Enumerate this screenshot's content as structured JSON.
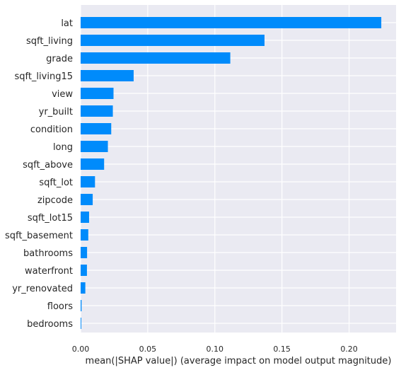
{
  "colors": {
    "bar": "#008bfb",
    "plot_background": "#eaeaf2",
    "grid": "#ffffff",
    "text": "#262626"
  },
  "chart_data": {
    "type": "bar",
    "orientation": "horizontal",
    "categories": [
      "lat",
      "sqft_living",
      "grade",
      "sqft_living15",
      "view",
      "yr_built",
      "condition",
      "long",
      "sqft_above",
      "sqft_lot",
      "zipcode",
      "sqft_lot15",
      "sqft_basement",
      "bathrooms",
      "waterfront",
      "yr_renovated",
      "floors",
      "bedrooms"
    ],
    "values": [
      0.224,
      0.137,
      0.1115,
      0.0395,
      0.0245,
      0.024,
      0.0228,
      0.0203,
      0.0175,
      0.0107,
      0.009,
      0.0063,
      0.0057,
      0.0048,
      0.0047,
      0.0035,
      0.0007,
      0.0005
    ],
    "title": "",
    "xlabel": "mean(|SHAP value|) (average impact on model output magnitude)",
    "ylabel": "",
    "xlim": [
      0,
      0.235
    ],
    "xticks": [
      0,
      0.05,
      0.1,
      0.15,
      0.2
    ],
    "xtick_labels": [
      "0.00",
      "0.05",
      "0.10",
      "0.15",
      "0.20"
    ],
    "grid": true
  }
}
